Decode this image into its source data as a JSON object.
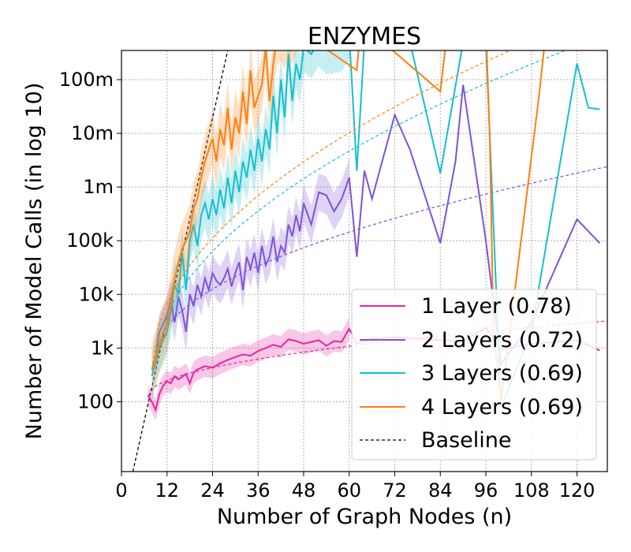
{
  "chart_data": {
    "type": "line",
    "title": "ENZYMES",
    "xlabel": "Number of Graph Nodes (n)",
    "ylabel": "Number of Model Calls (in log 10)",
    "xlim": [
      0,
      128
    ],
    "ylim": [
      5,
      350000000
    ],
    "yscale": "log10",
    "grid": true,
    "legend_position": "bottom-right",
    "xticks": [
      0,
      12,
      24,
      36,
      48,
      60,
      72,
      84,
      96,
      108,
      120
    ],
    "xtick_labels": [
      "0",
      "12",
      "24",
      "36",
      "48",
      "60",
      "72",
      "84",
      "96",
      "108",
      "120"
    ],
    "yticks": [
      100,
      1000,
      10000,
      100000,
      1000000,
      10000000,
      100000000
    ],
    "ytick_labels": [
      "100",
      "1k",
      "10k",
      "100k",
      "1m",
      "10m",
      "100m"
    ],
    "series": [
      {
        "name": "1 Layer (0.78)",
        "color": "#e6259f",
        "x": [
          7,
          8,
          9,
          10,
          11,
          12,
          13,
          14,
          15,
          16,
          17,
          18,
          19,
          20,
          22,
          24,
          26,
          28,
          30,
          32,
          34,
          36,
          38,
          40,
          42,
          44,
          46,
          48,
          50,
          52,
          54,
          56,
          58,
          60,
          62,
          66,
          72,
          84,
          90,
          96,
          100,
          108,
          120,
          126
        ],
        "y": [
          130,
          100,
          70,
          140,
          200,
          240,
          220,
          300,
          260,
          290,
          330,
          220,
          350,
          400,
          460,
          430,
          520,
          600,
          680,
          760,
          720,
          880,
          1000,
          1150,
          1050,
          1450,
          1350,
          1200,
          1300,
          1400,
          1100,
          1350,
          1300,
          2300,
          1200,
          1500,
          1600,
          1400,
          1350,
          2400,
          950,
          1200,
          1400,
          900
        ],
        "band": 0.2,
        "fit_end": 3200
      },
      {
        "name": "2 Layers (0.72)",
        "color": "#8052d8",
        "x": [
          9,
          10,
          12,
          13,
          14,
          15,
          16,
          17,
          18,
          19,
          20,
          21,
          22,
          23,
          24,
          25,
          26,
          27,
          28,
          29,
          30,
          31,
          32,
          33,
          34,
          35,
          36,
          37,
          38,
          39,
          40,
          41,
          42,
          43,
          44,
          45,
          46,
          47,
          48,
          50,
          52,
          54,
          56,
          58,
          60,
          62,
          64,
          66,
          72,
          76,
          84,
          88,
          90,
          96,
          100,
          108,
          120,
          126
        ],
        "y": [
          700,
          2000,
          4000,
          8000,
          3000,
          9000,
          5000,
          2000,
          10000,
          6000,
          15000,
          9000,
          20000,
          12000,
          25000,
          18000,
          15000,
          20000,
          30000,
          14000,
          25000,
          40000,
          12000,
          50000,
          30000,
          60000,
          25000,
          80000,
          35000,
          50000,
          120000,
          40000,
          80000,
          60000,
          200000,
          120000,
          300000,
          150000,
          500000,
          200000,
          800000,
          700000,
          350000,
          600000,
          1500000,
          50000,
          2000000,
          600000,
          22000000,
          5000000,
          90000,
          3000000,
          80000000,
          100000,
          500,
          3000,
          250000,
          90000
        ],
        "band": 0.35,
        "fit_end": 2400000
      },
      {
        "name": "3 Layers (0.69)",
        "color": "#17becf",
        "x": [
          8,
          10,
          12,
          13,
          14,
          15,
          16,
          17,
          18,
          19,
          20,
          21,
          22,
          23,
          24,
          25,
          26,
          27,
          28,
          29,
          30,
          31,
          32,
          33,
          34,
          35,
          36,
          37,
          38,
          39,
          40,
          41,
          42,
          43,
          44,
          45,
          46,
          47,
          48,
          50,
          52,
          54,
          58,
          60,
          62,
          64,
          76,
          84,
          90,
          96,
          100,
          108,
          120,
          123,
          126
        ],
        "y": [
          300,
          1000,
          2000,
          5000,
          15000,
          10000,
          60000,
          12000,
          100000,
          200000,
          80000,
          300000,
          500000,
          250000,
          600000,
          300000,
          900000,
          400000,
          1500000,
          500000,
          2000000,
          800000,
          3000000,
          1500000,
          5000000,
          2000000,
          8000000,
          3000000,
          12000000,
          5000000,
          50000000,
          10000000,
          100000000,
          20000000,
          300000000,
          40000000,
          200000000,
          100000000,
          400000000,
          300000000,
          500000000,
          350000000,
          400000000,
          700000000,
          2000000,
          500000000,
          500000000,
          1800000,
          500000000,
          500000000,
          80,
          2000,
          200000000,
          30000000,
          28000000
        ],
        "band": 0.45,
        "fit_end": 700000000
      },
      {
        "name": "4 Layers (0.69)",
        "color": "#ff7f0e",
        "x": [
          8,
          10,
          12,
          13,
          14,
          15,
          16,
          17,
          18,
          19,
          20,
          21,
          22,
          23,
          24,
          25,
          26,
          27,
          28,
          29,
          30,
          31,
          32,
          33,
          34,
          35,
          36,
          37,
          38,
          39,
          40,
          41,
          42,
          43,
          44,
          45,
          46,
          62,
          63,
          64,
          84,
          86,
          96,
          97,
          98,
          100,
          110,
          112
        ],
        "y": [
          400,
          1200,
          3000,
          8000,
          20000,
          40000,
          70000,
          100000,
          150000,
          400000,
          600000,
          1500000,
          3000000,
          5000000,
          8000000,
          3000000,
          12000000,
          6000000,
          30000000,
          5000000,
          20000000,
          10000000,
          60000000,
          15000000,
          150000000,
          30000000,
          50000000,
          80000000,
          400000000,
          40000000,
          200000000,
          600000000,
          700000000,
          500000000,
          800000000,
          600000000,
          900000000,
          150000000,
          900000000,
          1000000000,
          60000000,
          1000000000,
          1000000000,
          10000000,
          2000,
          100,
          50000000,
          1000000000
        ],
        "band": 0.5,
        "fit_end": 2000000000
      }
    ],
    "baseline": {
      "name": "Baseline",
      "color": "#000000",
      "x": [
        3,
        28
      ],
      "y": [
        5,
        350000000
      ]
    }
  },
  "legend": [
    {
      "label": "1 Layer (0.78)",
      "color": "#e6259f",
      "style": "solid"
    },
    {
      "label": "2 Layers (0.72)",
      "color": "#8052d8",
      "style": "solid"
    },
    {
      "label": "3 Layers (0.69)",
      "color": "#17becf",
      "style": "solid"
    },
    {
      "label": "4 Layers (0.69)",
      "color": "#ff7f0e",
      "style": "solid"
    },
    {
      "label": "Baseline",
      "color": "#000000",
      "style": "dashed"
    }
  ]
}
